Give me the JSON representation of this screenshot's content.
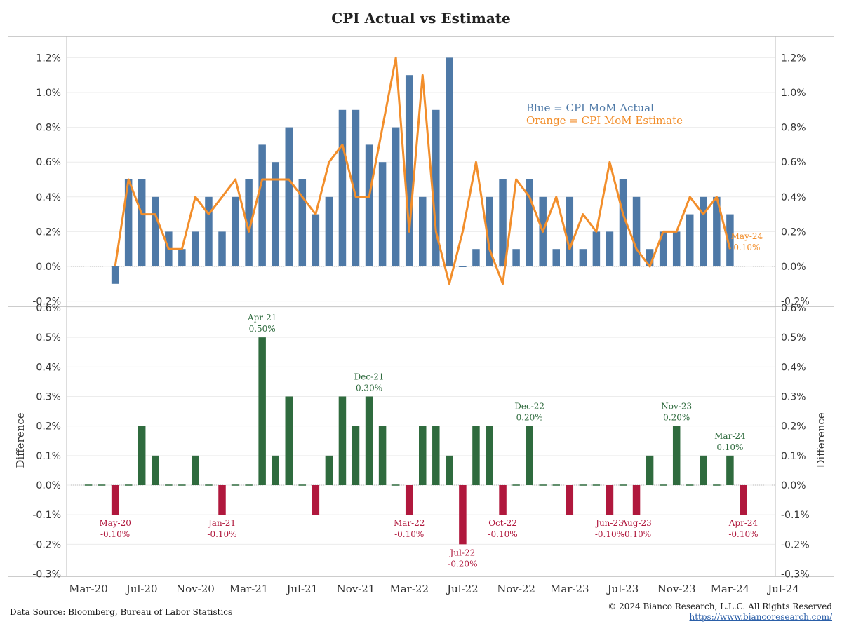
{
  "title": "CPI Actual vs Estimate",
  "footer": {
    "source": "Data Source: Bloomberg, Bureau of Labor Statistics",
    "copyright": "© 2024 Bianco Research, L.L.C. All Rights Reserved",
    "url": "https://www.biancoresearch.com/"
  },
  "colors": {
    "actual": "#4e79a7",
    "estimate": "#f28e2b",
    "positive": "#2f6b3e",
    "negative": "#b0183d"
  },
  "chart_data": [
    {
      "type": "bar",
      "name": "top-panel",
      "legend": [
        "Blue = CPI MoM Actual",
        "Orange = CPI MoM Estimate"
      ],
      "legend_placement": "top-right",
      "x": [
        "May-20",
        "Jun-20",
        "Jul-20",
        "Aug-20",
        "Sep-20",
        "Oct-20",
        "Nov-20",
        "Dec-20",
        "Jan-21",
        "Feb-21",
        "Mar-21",
        "Apr-21",
        "May-21",
        "Jun-21",
        "Jul-21",
        "Aug-21",
        "Sep-21",
        "Oct-21",
        "Nov-21",
        "Dec-21",
        "Jan-22",
        "Feb-22",
        "Mar-22",
        "Apr-22",
        "May-22",
        "Jun-22",
        "Jul-22",
        "Aug-22",
        "Sep-22",
        "Oct-22",
        "Nov-22",
        "Dec-22",
        "Jan-23",
        "Feb-23",
        "Mar-23",
        "Apr-23",
        "May-23",
        "Jun-23",
        "Jul-23",
        "Aug-23",
        "Sep-23",
        "Oct-23",
        "Nov-23",
        "Dec-23",
        "Jan-24",
        "Feb-24",
        "Mar-24",
        "Apr-24",
        "May-24"
      ],
      "series": [
        {
          "values": [
            -0.1,
            0.5,
            0.5,
            0.4,
            0.2,
            0.1,
            0.2,
            0.4,
            0.2,
            0.4,
            0.5,
            0.7,
            0.6,
            0.8,
            0.5,
            0.3,
            0.4,
            0.9,
            0.9,
            0.7,
            0.6,
            0.8,
            1.1,
            0.4,
            0.9,
            1.2,
            0.0,
            0.1,
            0.4,
            0.5,
            0.1,
            0.5,
            0.4,
            0.1,
            0.4,
            0.1,
            0.2,
            0.2,
            0.5,
            0.4,
            0.1,
            0.2,
            0.2,
            0.3,
            0.4,
            0.4,
            0.3,
            null,
            null
          ]
        },
        {
          "values": [
            0.0,
            0.5,
            0.3,
            0.3,
            0.1,
            0.1,
            0.4,
            0.3,
            0.4,
            0.5,
            0.2,
            0.5,
            0.5,
            0.5,
            0.4,
            0.3,
            0.6,
            0.7,
            0.4,
            0.4,
            0.8,
            1.2,
            0.2,
            1.1,
            0.2,
            -0.1,
            0.2,
            0.6,
            0.1,
            -0.1,
            0.5,
            0.4,
            0.2,
            0.4,
            0.1,
            0.3,
            0.2,
            0.6,
            0.3,
            0.1,
            0.0,
            0.2,
            0.2,
            0.4,
            0.3,
            0.4,
            0.1,
            null,
            null
          ]
        }
      ],
      "ylim": [
        -0.22,
        1.3
      ],
      "yticks": [
        "1.2%",
        "1.0%",
        "0.8%",
        "0.6%",
        "0.4%",
        "0.2%",
        "0.0%",
        "-0.2%"
      ],
      "ytick_values": [
        1.2,
        1.0,
        0.8,
        0.6,
        0.4,
        0.2,
        0.0,
        -0.2
      ],
      "end_annotation": {
        "label": "May-24",
        "value_text": "0.10%"
      }
    },
    {
      "type": "bar",
      "name": "bottom-panel",
      "ylabel": "Difference",
      "x": [
        "Mar-20",
        "Apr-20",
        "May-20",
        "Jun-20",
        "Jul-20",
        "Aug-20",
        "Sep-20",
        "Oct-20",
        "Nov-20",
        "Dec-20",
        "Jan-21",
        "Feb-21",
        "Mar-21",
        "Apr-21",
        "May-21",
        "Jun-21",
        "Jul-21",
        "Aug-21",
        "Sep-21",
        "Oct-21",
        "Nov-21",
        "Dec-21",
        "Jan-22",
        "Feb-22",
        "Mar-22",
        "Apr-22",
        "May-22",
        "Jun-22",
        "Jul-22",
        "Aug-22",
        "Sep-22",
        "Oct-22",
        "Nov-22",
        "Dec-22",
        "Jan-23",
        "Feb-23",
        "Mar-23",
        "Apr-23",
        "May-23",
        "Jun-23",
        "Jul-23",
        "Aug-23",
        "Sep-23",
        "Oct-23",
        "Nov-23",
        "Dec-23",
        "Jan-24",
        "Feb-24",
        "Mar-24",
        "Apr-24"
      ],
      "values": [
        0.0,
        0.0,
        -0.1,
        0.0,
        0.2,
        0.1,
        0.0,
        0.0,
        0.1,
        0.0,
        -0.1,
        0.0,
        0.0,
        0.5,
        0.1,
        0.3,
        0.0,
        -0.1,
        0.1,
        0.3,
        0.2,
        0.3,
        0.2,
        0.0,
        -0.1,
        0.2,
        0.2,
        0.1,
        -0.2,
        0.2,
        0.2,
        -0.1,
        0.0,
        0.2,
        0.0,
        0.0,
        -0.1,
        0.0,
        0.0,
        -0.1,
        0.0,
        -0.1,
        0.1,
        0.0,
        0.2,
        0.0,
        0.1,
        0.0,
        0.1,
        -0.1
      ],
      "ylim": [
        -0.3,
        0.6
      ],
      "yticks": [
        "0.6%",
        "0.5%",
        "0.4%",
        "0.3%",
        "0.2%",
        "0.1%",
        "0.0%",
        "-0.1%",
        "-0.2%",
        "-0.3%"
      ],
      "ytick_values": [
        0.6,
        0.5,
        0.4,
        0.3,
        0.2,
        0.1,
        0.0,
        -0.1,
        -0.2,
        -0.3
      ],
      "annotations": [
        {
          "label": "May-20",
          "value_text": "-0.10%",
          "sign": "neg"
        },
        {
          "label": "Jan-21",
          "value_text": "-0.10%",
          "sign": "neg"
        },
        {
          "label": "Apr-21",
          "value_text": "0.50%",
          "sign": "pos"
        },
        {
          "label": "Dec-21",
          "value_text": "0.30%",
          "sign": "pos"
        },
        {
          "label": "Mar-22",
          "value_text": "-0.10%",
          "sign": "neg"
        },
        {
          "label": "Jul-22",
          "value_text": "-0.20%",
          "sign": "neg"
        },
        {
          "label": "Oct-22",
          "value_text": "-0.10%",
          "sign": "neg"
        },
        {
          "label": "Dec-22",
          "value_text": "0.20%",
          "sign": "pos"
        },
        {
          "label": "Jun-23",
          "value_text": "-0.10%",
          "sign": "neg"
        },
        {
          "label": "Aug-23",
          "value_text": "-0.10%",
          "sign": "neg"
        },
        {
          "label": "Nov-23",
          "value_text": "0.20%",
          "sign": "pos"
        },
        {
          "label": "Mar-24",
          "value_text": "0.10%",
          "sign": "pos"
        },
        {
          "label": "Apr-24",
          "value_text": "-0.10%",
          "sign": "neg"
        }
      ],
      "xticks": [
        "Mar-20",
        "Jul-20",
        "Nov-20",
        "Mar-21",
        "Jul-21",
        "Nov-21",
        "Mar-22",
        "Jul-22",
        "Nov-22",
        "Mar-23",
        "Jul-23",
        "Nov-23",
        "Mar-24",
        "Jul-24"
      ]
    }
  ]
}
